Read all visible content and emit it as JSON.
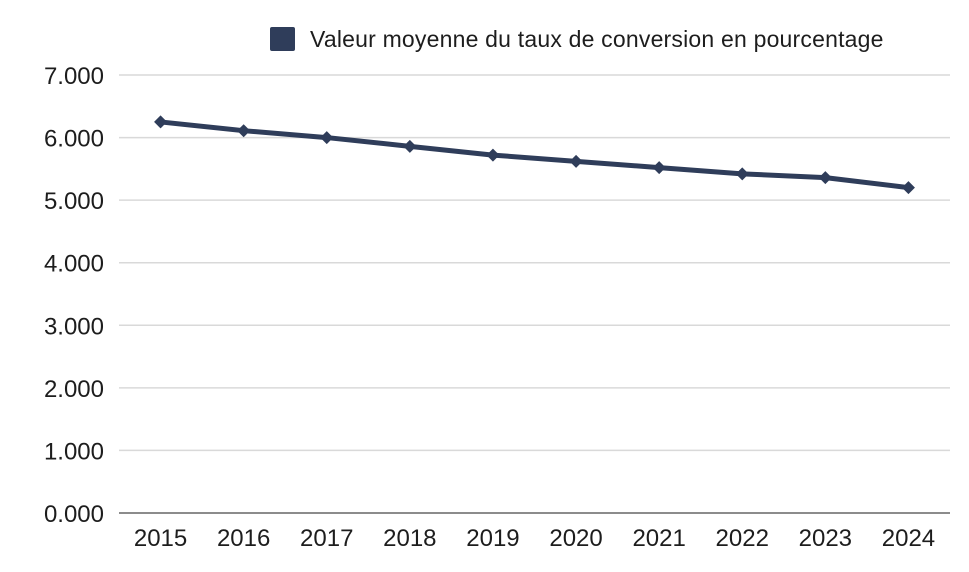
{
  "chart_data": {
    "type": "line",
    "title": "",
    "legend": [
      "Valeur moyenne du taux de conversion en pourcentage"
    ],
    "legend_position": "top",
    "categories": [
      "2015",
      "2016",
      "2017",
      "2018",
      "2019",
      "2020",
      "2021",
      "2022",
      "2023",
      "2024"
    ],
    "series": [
      {
        "name": "Valeur moyenne du taux de conversion en pourcentage",
        "values": [
          6.25,
          6.11,
          6.0,
          5.86,
          5.72,
          5.62,
          5.52,
          5.42,
          5.36,
          5.2
        ]
      }
    ],
    "xlabel": "",
    "ylabel": "",
    "ylim": [
      0,
      7
    ],
    "y_ticks": [
      "0.000",
      "1.000",
      "2.000",
      "3.000",
      "4.000",
      "5.000",
      "6.000",
      "7.000"
    ],
    "grid": "horizontal",
    "marker": "diamond",
    "colors": {
      "series": "#2f3d5a",
      "grid": "#d9d9d9",
      "axis": "#8c8c8c",
      "text": "#1d1d1d"
    }
  }
}
